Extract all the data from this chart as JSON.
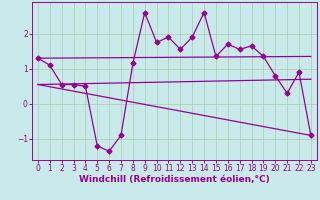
{
  "xlabel": "Windchill (Refroidissement éolien,°C)",
  "background_color": "#c8eaea",
  "line_color": "#990099",
  "grid_color": "#aaccaa",
  "xlim": [
    -0.5,
    23.5
  ],
  "ylim": [
    -1.6,
    2.9
  ],
  "yticks": [
    -1,
    0,
    1,
    2
  ],
  "xticks": [
    0,
    1,
    2,
    3,
    4,
    5,
    6,
    7,
    8,
    9,
    10,
    11,
    12,
    13,
    14,
    15,
    16,
    17,
    18,
    19,
    20,
    21,
    22,
    23
  ],
  "series1_x": [
    0,
    1,
    2,
    3,
    4,
    5,
    6,
    7,
    8,
    9,
    10,
    11,
    12,
    13,
    14,
    15,
    16,
    17,
    18,
    19,
    20,
    21,
    22,
    23
  ],
  "series1_y": [
    1.3,
    1.1,
    0.55,
    0.55,
    0.5,
    -1.2,
    -1.35,
    -0.9,
    1.15,
    2.6,
    1.75,
    1.9,
    1.55,
    1.9,
    2.6,
    1.35,
    1.7,
    1.55,
    1.65,
    1.35,
    0.8,
    0.3,
    0.9,
    -0.9
  ],
  "series2_x": [
    0,
    23
  ],
  "series2_y": [
    0.55,
    -0.9
  ],
  "series3_x": [
    0,
    23
  ],
  "series3_y": [
    0.55,
    0.7
  ],
  "series4_x": [
    0,
    23
  ],
  "series4_y": [
    1.3,
    1.35
  ],
  "marker": "D",
  "marker_size": 2.5,
  "line_width": 0.9,
  "tick_fontsize": 5.5,
  "label_fontsize": 6.5
}
